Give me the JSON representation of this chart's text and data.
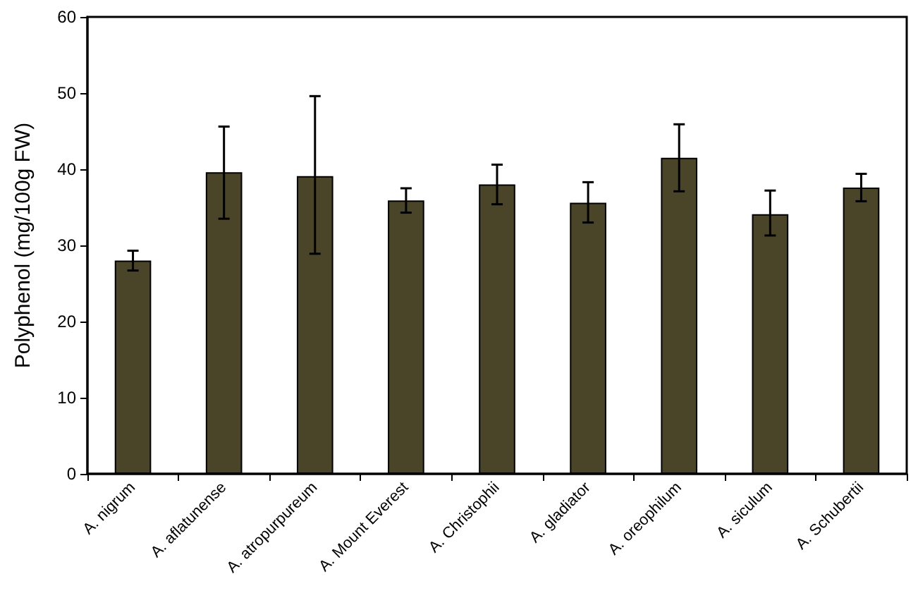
{
  "chart_data": {
    "type": "bar",
    "ylabel": "Polyphenol (mg/100g FW)",
    "categories": [
      "A. nigrum",
      "A. aflatunense",
      "A. atropurpureum",
      "A. Mount Everest",
      "A. Christophii",
      "A. gladiator",
      "A. oreophilum",
      "A. siculum",
      "A. Schubertii"
    ],
    "values": [
      28,
      39.6,
      39.1,
      35.9,
      38,
      35.6,
      41.5,
      34.1,
      37.6
    ],
    "errors": [
      [
        26.7,
        29.3
      ],
      [
        33.5,
        45.6
      ],
      [
        28.9,
        49.6
      ],
      [
        34.3,
        37.5
      ],
      [
        35.4,
        40.6
      ],
      [
        33,
        38.3
      ],
      [
        37.1,
        45.9
      ],
      [
        31.3,
        37.2
      ],
      [
        35.8,
        39.4
      ]
    ],
    "color": "#4a4528",
    "ylim": [
      0,
      60
    ],
    "yticks": [
      0,
      10,
      20,
      30,
      40,
      50,
      60
    ],
    "grid": false
  }
}
